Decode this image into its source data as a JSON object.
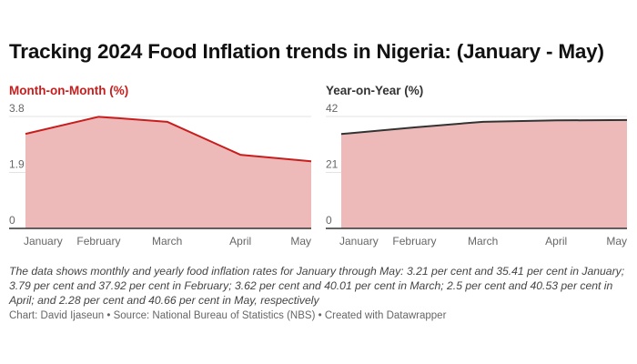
{
  "title": "Tracking 2024 Food Inflation trends in Nigeria: (January - May)",
  "description": "The data shows monthly and yearly food inflation rates for January through May: 3.21 per cent and 35.41 per cent in January; 3.79 per cent and 37.92 per cent in February; 3.62 per cent and 40.01 per cent in March; 2.5 per cent and 40.53 per cent in April; and 2.28 per cent and 40.66 per cent in May, respectively",
  "footer": "Chart: David Ijaseun • Source: National Bureau of Statistics (NBS) • Created with Datawrapper",
  "chart_data": [
    {
      "type": "area",
      "title": "Month-on-Month (%)",
      "title_color": "#c71e1d",
      "line_color": "#c71e1d",
      "fill_color": "#eeb9b9",
      "categories": [
        "January",
        "February",
        "March",
        "April",
        "May"
      ],
      "x": [
        "2024-01-01",
        "2024-02-01",
        "2024-03-01",
        "2024-04-01",
        "2024-05-01"
      ],
      "values": [
        3.21,
        3.79,
        3.62,
        2.5,
        2.28
      ],
      "y_ticks": [
        "0",
        "1.9",
        "3.8"
      ],
      "ylim": [
        0,
        3.8
      ],
      "grid": true
    },
    {
      "type": "area",
      "title": "Year-on-Year (%)",
      "title_color": "#333333",
      "line_color": "#333333",
      "fill_color": "#eeb9b9",
      "categories": [
        "January",
        "February",
        "March",
        "April",
        "May"
      ],
      "x": [
        "2024-01-01",
        "2024-02-01",
        "2024-03-01",
        "2024-04-01",
        "2024-05-01"
      ],
      "values": [
        35.41,
        37.92,
        40.01,
        40.53,
        40.66
      ],
      "y_ticks": [
        "0",
        "21",
        "42"
      ],
      "ylim": [
        0,
        42
      ],
      "grid": true
    }
  ]
}
